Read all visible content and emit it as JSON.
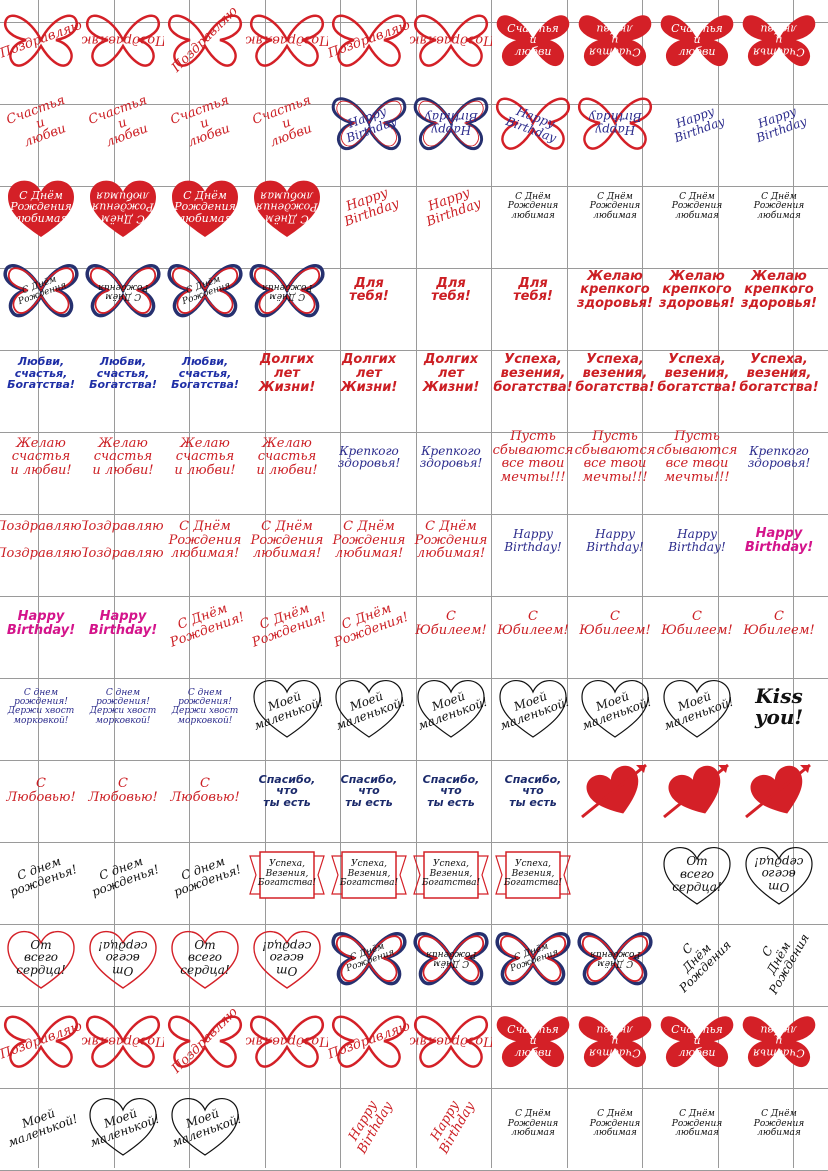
{
  "colors": {
    "red": "#d42027",
    "navy": "#26306f",
    "blue": "#2b2b8c",
    "pink": "#d4148b",
    "black": "#111111",
    "grid": "#9a9a9a"
  },
  "rows": [
    [
      {
        "text": "Поздравляю",
        "shape": "butterfly-outline",
        "style": "script",
        "rot": "rot-20"
      },
      {
        "text": "Поздравляю",
        "shape": "butterfly-outline",
        "style": "script",
        "rot": "rot180"
      },
      {
        "text": "Поздравляю",
        "shape": "butterfly-outline",
        "style": "script",
        "rot": "rot-45"
      },
      {
        "text": "Поздравляю",
        "shape": "butterfly-outline",
        "style": "script",
        "rot": "rot180"
      },
      {
        "text": "Поздравляю",
        "shape": "butterfly-outline",
        "style": "script",
        "rot": "rot-20"
      },
      {
        "text": "Поздравляю",
        "shape": "butterfly-outline",
        "style": "script",
        "rot": "rot180"
      },
      {
        "text": "Счастья\nи\nлюбви",
        "shape": "butterfly-filled",
        "style": "white",
        "rot": ""
      },
      {
        "text": "Счастья\nи\nлюбви",
        "shape": "butterfly-filled",
        "style": "white",
        "rot": "rot180"
      },
      {
        "text": "Счастья\nи\nлюбви",
        "shape": "butterfly-filled",
        "style": "white",
        "rot": ""
      },
      {
        "text": "Счастья\nи\nлюбви",
        "shape": "butterfly-filled",
        "style": "white",
        "rot": "rot180"
      }
    ],
    [
      {
        "text": "Счастья\nи\nлюбви",
        "shape": "none",
        "style": "script",
        "rot": "rot-20"
      },
      {
        "text": "Счастья\nи\nлюбви",
        "shape": "none",
        "style": "script",
        "rot": "rot-20"
      },
      {
        "text": "Счастья\nи\nлюбви",
        "shape": "none",
        "style": "script",
        "rot": "rot-20"
      },
      {
        "text": "Счастья\nи\nлюбви",
        "shape": "none",
        "style": "script",
        "rot": "rot-20"
      },
      {
        "text": "Happy\nBirthday",
        "shape": "butterfly-navy",
        "style": "blue",
        "rot": "rot-20"
      },
      {
        "text": "Happy\nBirthday",
        "shape": "butterfly-navy",
        "style": "blue",
        "rot": "rot180"
      },
      {
        "text": "Happy\nBirthday",
        "shape": "butterfly-outline",
        "style": "blue",
        "rot": "rot20"
      },
      {
        "text": "Happy\nBirthday",
        "shape": "butterfly-outline",
        "style": "blue",
        "rot": "rot180"
      },
      {
        "text": "Happy\nBirthday",
        "shape": "none",
        "style": "blue",
        "rot": "rot-20"
      },
      {
        "text": "Happy\nBirthday",
        "shape": "none",
        "style": "blue",
        "rot": "rot-20"
      }
    ],
    [
      {
        "text": "С Днём\nРождения\nлюбимая",
        "shape": "heart-filled",
        "style": "white",
        "rot": ""
      },
      {
        "text": "С Днём\nРождения\nлюбимая",
        "shape": "heart-filled",
        "style": "white",
        "rot": "rot180"
      },
      {
        "text": "С Днём\nРождения\nлюбимая",
        "shape": "heart-filled",
        "style": "white",
        "rot": ""
      },
      {
        "text": "С Днём\nРождения\nлюбимая",
        "shape": "heart-filled",
        "style": "white",
        "rot": "rot180"
      },
      {
        "text": "Happy\nBirthday",
        "shape": "none",
        "style": "script",
        "rot": "rot-20"
      },
      {
        "text": "Happy\nBirthday",
        "shape": "none",
        "style": "script",
        "rot": "rot-20"
      },
      {
        "text": "С Днём\nРождения\nлюбимая",
        "shape": "none",
        "style": "tiny",
        "rot": ""
      },
      {
        "text": "С Днём\nРождения\nлюбимая",
        "shape": "none",
        "style": "tiny",
        "rot": ""
      },
      {
        "text": "С Днём\nРождения\nлюбимая",
        "shape": "none",
        "style": "tiny",
        "rot": ""
      },
      {
        "text": "С Днём\nРождения\nлюбимая",
        "shape": "none",
        "style": "tiny",
        "rot": ""
      }
    ],
    [
      {
        "text": "С Днём\nРождения",
        "shape": "butterfly-tricolor",
        "style": "tiny",
        "rot": "rot-20"
      },
      {
        "text": "С Днём\nРождения",
        "shape": "butterfly-tricolor",
        "style": "tiny",
        "rot": "rot180"
      },
      {
        "text": "С Днём\nРождения",
        "shape": "butterfly-tricolor",
        "style": "tiny",
        "rot": "rot-20"
      },
      {
        "text": "С Днём\nРождения",
        "shape": "butterfly-tricolor",
        "style": "tiny",
        "rot": "rot180"
      },
      {
        "text": "Для\nтебя!",
        "shape": "none",
        "style": "bold",
        "rot": ""
      },
      {
        "text": "Для\nтебя!",
        "shape": "none",
        "style": "bold",
        "rot": ""
      },
      {
        "text": "Для\nтебя!",
        "shape": "none",
        "style": "bold",
        "rot": ""
      },
      {
        "text": "Желаю\nкрепкого\nздоровья!",
        "shape": "none",
        "style": "bold",
        "rot": ""
      },
      {
        "text": "Желаю\nкрепкого\nздоровья!",
        "shape": "none",
        "style": "bold",
        "rot": ""
      },
      {
        "text": "Желаю\nкрепкого\nздоровья!",
        "shape": "none",
        "style": "bold",
        "rot": ""
      }
    ],
    [
      {
        "text": "Любви,\nсчастья,\nБогатства!",
        "shape": "none",
        "style": "blueb",
        "rot": ""
      },
      {
        "text": "Любви,\nсчастья,\nБогатства!",
        "shape": "none",
        "style": "blueb",
        "rot": ""
      },
      {
        "text": "Любви,\nсчастья,\nБогатства!",
        "shape": "none",
        "style": "blueb",
        "rot": ""
      },
      {
        "text": "Долгих\nлет\nЖизни!",
        "shape": "none",
        "style": "bold",
        "rot": ""
      },
      {
        "text": "Долгих\nлет\nЖизни!",
        "shape": "none",
        "style": "bold",
        "rot": ""
      },
      {
        "text": "Долгих\nлет\nЖизни!",
        "shape": "none",
        "style": "bold",
        "rot": ""
      },
      {
        "text": "Успеха,\nвезения,\nбогатства!",
        "shape": "none",
        "style": "bold",
        "rot": ""
      },
      {
        "text": "Успеха,\nвезения,\nбогатства!",
        "shape": "none",
        "style": "bold",
        "rot": ""
      },
      {
        "text": "Успеха,\nвезения,\nбогатства!",
        "shape": "none",
        "style": "bold",
        "rot": ""
      },
      {
        "text": "Успеха,\nвезения,\nбогатства!",
        "shape": "none",
        "style": "bold",
        "rot": ""
      }
    ],
    [
      {
        "text": "Желаю\nсчастья\nи любви!",
        "shape": "none",
        "style": "script",
        "rot": ""
      },
      {
        "text": "Желаю\nсчастья\nи любви!",
        "shape": "none",
        "style": "script",
        "rot": ""
      },
      {
        "text": "Желаю\nсчастья\nи любви!",
        "shape": "none",
        "style": "script",
        "rot": ""
      },
      {
        "text": "Желаю\nсчастья\nи любви!",
        "shape": "none",
        "style": "script",
        "rot": ""
      },
      {
        "text": "Крепкого\nздоровья!",
        "shape": "none",
        "style": "blue",
        "rot": ""
      },
      {
        "text": "Крепкого\nздоровья!",
        "shape": "none",
        "style": "blue",
        "rot": ""
      },
      {
        "text": "Пусть\nсбываются\nвсе твои\nмечты!!!",
        "shape": "none",
        "style": "script",
        "rot": ""
      },
      {
        "text": "Пусть\nсбываются\nвсе твои\nмечты!!!",
        "shape": "none",
        "style": "script",
        "rot": ""
      },
      {
        "text": "Пусть\nсбываются\nвсе твои\nмечты!!!",
        "shape": "none",
        "style": "script",
        "rot": ""
      },
      {
        "text": "Крепкого\nздоровья!",
        "shape": "none",
        "style": "blue",
        "rot": ""
      }
    ],
    [
      {
        "text": "Поздравляю!\n\nПоздравляю!",
        "shape": "none",
        "style": "script",
        "rot": ""
      },
      {
        "text": "Поздравляю!\n\nПоздравляю!",
        "shape": "none",
        "style": "script",
        "rot": ""
      },
      {
        "text": "С Днём\nРождения\nлюбимая!",
        "shape": "none",
        "style": "script",
        "rot": ""
      },
      {
        "text": "С Днём\nРождения\nлюбимая!",
        "shape": "none",
        "style": "script",
        "rot": ""
      },
      {
        "text": "С Днём\nРождения\nлюбимая!",
        "shape": "none",
        "style": "script",
        "rot": ""
      },
      {
        "text": "С Днём\nРождения\nлюбимая!",
        "shape": "none",
        "style": "script",
        "rot": ""
      },
      {
        "text": "Happy\nBirthday!",
        "shape": "none",
        "style": "blue",
        "rot": ""
      },
      {
        "text": "Happy\nBirthday!",
        "shape": "none",
        "style": "blue",
        "rot": ""
      },
      {
        "text": "Happy\nBirthday!",
        "shape": "none",
        "style": "blue",
        "rot": ""
      },
      {
        "text": "Happy\nBirthday!",
        "shape": "none",
        "style": "pink",
        "rot": ""
      }
    ],
    [
      {
        "text": "Happy\nBirthday!",
        "shape": "none",
        "style": "pink",
        "rot": ""
      },
      {
        "text": "Happy\nBirthday!",
        "shape": "none",
        "style": "pink",
        "rot": ""
      },
      {
        "text": "С Днём\nРождения!",
        "shape": "none",
        "style": "script",
        "rot": "rot-20"
      },
      {
        "text": "С Днём\nРождения!",
        "shape": "none",
        "style": "script",
        "rot": "rot-20"
      },
      {
        "text": "С Днём\nРождения!",
        "shape": "none",
        "style": "script",
        "rot": "rot-20"
      },
      {
        "text": "С\nЮбилеем!",
        "shape": "none",
        "style": "script",
        "rot": ""
      },
      {
        "text": "С\nЮбилеем!",
        "shape": "none",
        "style": "script",
        "rot": ""
      },
      {
        "text": "С\nЮбилеем!",
        "shape": "none",
        "style": "script",
        "rot": ""
      },
      {
        "text": "С\nЮбилеем!",
        "shape": "none",
        "style": "script",
        "rot": ""
      },
      {
        "text": "С\nЮбилеем!",
        "shape": "none",
        "style": "script",
        "rot": ""
      }
    ],
    [
      {
        "text": "С днем рождения!\nДержи хвост\nморковкой!",
        "shape": "none",
        "style": "small",
        "rot": ""
      },
      {
        "text": "С днем рождения!\nДержи хвост\nморковкой!",
        "shape": "none",
        "style": "small",
        "rot": ""
      },
      {
        "text": "С днем рождения!\nДержи хвост\nморковкой!",
        "shape": "none",
        "style": "small",
        "rot": ""
      },
      {
        "text": "Моей\nмаленькой!",
        "shape": "heart-line",
        "style": "black",
        "rot": "rot-20"
      },
      {
        "text": "Моей\nмаленькой!",
        "shape": "heart-line",
        "style": "black",
        "rot": "rot-20"
      },
      {
        "text": "Моей\nмаленькой!",
        "shape": "heart-line",
        "style": "black",
        "rot": "rot-20"
      },
      {
        "text": "Моей\nмаленькой!",
        "shape": "heart-line",
        "style": "black",
        "rot": "rot-20"
      },
      {
        "text": "Моей\nмаленькой!",
        "shape": "heart-line",
        "style": "black",
        "rot": "rot-20"
      },
      {
        "text": "Моей\nмаленькой!",
        "shape": "heart-line",
        "style": "black",
        "rot": "rot-20"
      },
      {
        "text": "Kiss\nyou!",
        "shape": "none",
        "style": "kiss",
        "rot": ""
      }
    ],
    [
      {
        "text": "С\nЛюбовью!",
        "shape": "none",
        "style": "script",
        "rot": ""
      },
      {
        "text": "С\nЛюбовью!",
        "shape": "none",
        "style": "script",
        "rot": ""
      },
      {
        "text": "С\nЛюбовью!",
        "shape": "none",
        "style": "script",
        "rot": ""
      },
      {
        "text": "Спасибо,\nчто\nты есть",
        "shape": "none",
        "style": "navyb",
        "rot": ""
      },
      {
        "text": "Спасибо,\nчто\nты есть",
        "shape": "none",
        "style": "navyb",
        "rot": ""
      },
      {
        "text": "Спасибо,\nчто\nты есть",
        "shape": "none",
        "style": "navyb",
        "rot": ""
      },
      {
        "text": "Спасибо,\nчто\nты есть",
        "shape": "none",
        "style": "navyb",
        "rot": ""
      },
      {
        "text": "",
        "shape": "heart-arrow",
        "style": "white",
        "rot": ""
      },
      {
        "text": "",
        "shape": "heart-arrow",
        "style": "white",
        "rot": ""
      },
      {
        "text": "",
        "shape": "heart-arrow",
        "style": "white",
        "rot": ""
      }
    ],
    [
      {
        "text": "С днем\nрожденья!",
        "shape": "none",
        "style": "black",
        "rot": "rot-20"
      },
      {
        "text": "С днем\nрожденья!",
        "shape": "none",
        "style": "black",
        "rot": "rot-20"
      },
      {
        "text": "С днем\nрожденья!",
        "shape": "none",
        "style": "black",
        "rot": "rot-20"
      },
      {
        "text": "Успеха,\nВезения,\nБогатства!",
        "shape": "ribbon",
        "style": "tiny",
        "rot": ""
      },
      {
        "text": "Успеха,\nВезения,\nБогатства!",
        "shape": "ribbon",
        "style": "tiny",
        "rot": ""
      },
      {
        "text": "Успеха,\nВезения,\nБогатства!",
        "shape": "ribbon",
        "style": "tiny",
        "rot": ""
      },
      {
        "text": "Успеха,\nВезения,\nБогатства!",
        "shape": "ribbon",
        "style": "tiny",
        "rot": ""
      },
      {
        "text": "",
        "shape": "blank",
        "style": "tiny",
        "rot": ""
      },
      {
        "text": "От\nвсего\nсердца!",
        "shape": "heart-line",
        "style": "black",
        "rot": ""
      },
      {
        "text": "От\nвсего\nсердца!",
        "shape": "heart-line",
        "style": "black",
        "rot": "rot180"
      }
    ],
    [
      {
        "text": "От\nвсего\nсердца!",
        "shape": "heart-line-red",
        "style": "black",
        "rot": ""
      },
      {
        "text": "От\nвсего\nсердца!",
        "shape": "heart-line-red",
        "style": "black",
        "rot": "rot180"
      },
      {
        "text": "От\nвсего\nсердца!",
        "shape": "heart-line-red",
        "style": "black",
        "rot": ""
      },
      {
        "text": "От\nвсего\nсердца!",
        "shape": "heart-line-red",
        "style": "black",
        "rot": "rot180"
      },
      {
        "text": "С Днём\nРождения",
        "shape": "butterfly-tricolor",
        "style": "tiny",
        "rot": "rot-20"
      },
      {
        "text": "С Днём\nРождения",
        "shape": "butterfly-tricolor",
        "style": "tiny",
        "rot": "rot180"
      },
      {
        "text": "С Днём\nРождения",
        "shape": "butterfly-tricolor",
        "style": "tiny",
        "rot": "rot-20"
      },
      {
        "text": "С Днём\nРождения",
        "shape": "butterfly-tricolor",
        "style": "tiny",
        "rot": "rot180"
      },
      {
        "text": "С\nДнём\nРождения",
        "shape": "none",
        "style": "black",
        "rot": "rot-45"
      },
      {
        "text": "С\nДнём\nРождения",
        "shape": "none",
        "style": "black",
        "rot": "rot-60"
      }
    ],
    [
      {
        "text": "Поздравляю",
        "shape": "butterfly-outline",
        "style": "script",
        "rot": "rot-20"
      },
      {
        "text": "Поздравляю",
        "shape": "butterfly-outline",
        "style": "script",
        "rot": "rot180"
      },
      {
        "text": "Поздравляю",
        "shape": "butterfly-outline",
        "style": "script",
        "rot": "rot-45"
      },
      {
        "text": "Поздравляю",
        "shape": "butterfly-outline",
        "style": "script",
        "rot": "rot180"
      },
      {
        "text": "Поздравляю",
        "shape": "butterfly-outline",
        "style": "script",
        "rot": "rot-20"
      },
      {
        "text": "Поздравляю",
        "shape": "butterfly-outline",
        "style": "script",
        "rot": "rot180"
      },
      {
        "text": "Счастья\nи\nлюбви",
        "shape": "butterfly-filled",
        "style": "white",
        "rot": ""
      },
      {
        "text": "Счастья\nи\nлюбви",
        "shape": "butterfly-filled",
        "style": "white",
        "rot": "rot180"
      },
      {
        "text": "Счастья\nи\nлюбви",
        "shape": "butterfly-filled",
        "style": "white",
        "rot": ""
      },
      {
        "text": "Счастья\nи\nлюбви",
        "shape": "butterfly-filled",
        "style": "white",
        "rot": "rot180"
      }
    ],
    [
      {
        "text": "Моей\nмаленькой!",
        "shape": "none",
        "style": "black",
        "rot": "rot-20"
      },
      {
        "text": "Моей\nмаленькой!",
        "shape": "heart-line",
        "style": "black",
        "rot": "rot-20"
      },
      {
        "text": "Моей\nмаленькой!",
        "shape": "heart-line",
        "style": "black",
        "rot": "rot-20"
      },
      {
        "text": "",
        "shape": "blank",
        "style": "tiny",
        "rot": ""
      },
      {
        "text": "Happy\nBirthday",
        "shape": "none",
        "style": "script",
        "rot": "rot-60"
      },
      {
        "text": "Happy\nBirthday",
        "shape": "none",
        "style": "script",
        "rot": "rot-60"
      },
      {
        "text": "С Днём\nРождения\nлюбимая",
        "shape": "none",
        "style": "tiny",
        "rot": ""
      },
      {
        "text": "С Днём\nРождения\nлюбимая",
        "shape": "none",
        "style": "tiny",
        "rot": ""
      },
      {
        "text": "С Днём\nРождения\nлюбимая",
        "shape": "none",
        "style": "tiny",
        "rot": ""
      },
      {
        "text": "С Днём\nРождения\nлюбимая",
        "shape": "none",
        "style": "tiny",
        "rot": ""
      }
    ]
  ]
}
